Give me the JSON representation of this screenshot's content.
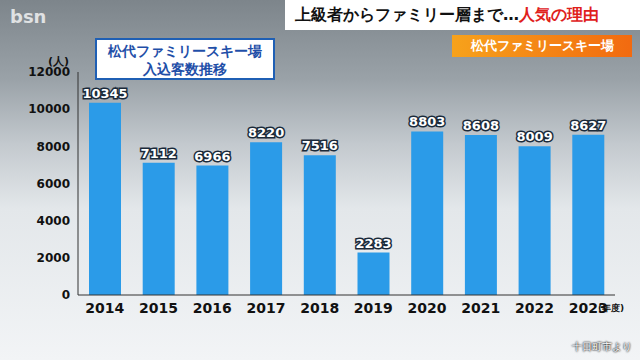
{
  "chart_data": {
    "type": "bar",
    "title": "松代ファミリースキー場",
    "subtitle": "入込客数推移",
    "y_label": "(人)",
    "x_label": "(年度)",
    "categories": [
      "2014",
      "2015",
      "2016",
      "2017",
      "2018",
      "2019",
      "2020",
      "2021",
      "2022",
      "2023"
    ],
    "values": [
      10345,
      7112,
      6966,
      8220,
      7516,
      2283,
      8803,
      8608,
      8009,
      8627
    ],
    "color": "#2b9be8",
    "ylim": [
      0,
      12000
    ],
    "yticks": [
      0,
      2000,
      4000,
      6000,
      8000,
      10000,
      12000
    ],
    "grid": false,
    "data_labels": true,
    "annotations": {
      "headline": "上級者からファミリー層まで…",
      "headline_emphasis": "人気の理由",
      "tag": "松代ファミリースキー場",
      "logo": "bsn",
      "source": "十日町市より"
    }
  }
}
